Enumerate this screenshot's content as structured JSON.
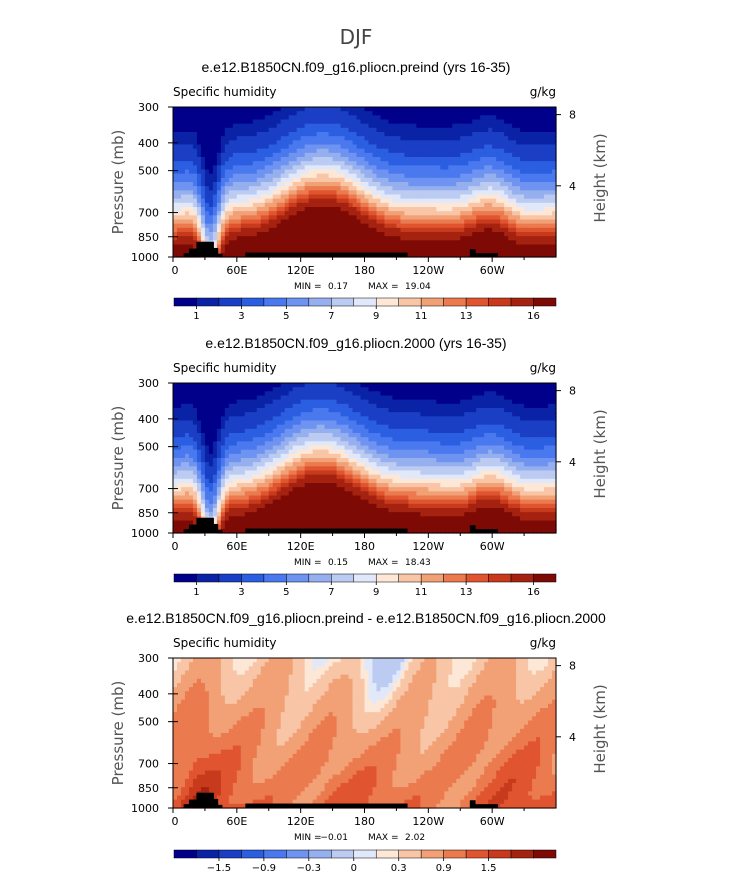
{
  "figure": {
    "title": "DJF"
  },
  "chart_data": [
    {
      "type": "heatmap",
      "title": "e.e12.B1850CN.f09_g16.pliocn.preind (yrs 16-35)",
      "field": "Specific humidity",
      "units": "g/kg",
      "ylabel": "Pressure (mb)",
      "y2label": "Height (km)",
      "xticks": [
        "0",
        "60E",
        "120E",
        "180",
        "120W",
        "60W"
      ],
      "xtick_lons": [
        0,
        60,
        120,
        180,
        240,
        300
      ],
      "xlim": [
        0,
        360
      ],
      "yticks": [
        "300",
        "400",
        "500",
        "700",
        "850",
        "1000"
      ],
      "ytick_p": [
        300,
        400,
        500,
        700,
        850,
        1000
      ],
      "ylim": [
        1000,
        300
      ],
      "y2ticks": [
        "8",
        "4"
      ],
      "y2tick_km": [
        8,
        4
      ],
      "min_label": "MIN =",
      "min_value": "0.17",
      "max_label": "MAX =",
      "max_value": "19.04",
      "colorbar_labels": [
        "1",
        "3",
        "5",
        "7",
        "9",
        "11",
        "13",
        "16"
      ],
      "colorbar_colors": [
        "#00008b",
        "#0a23a6",
        "#1a3fc4",
        "#2b5ee0",
        "#4a78ee",
        "#6e93f0",
        "#95afef",
        "#bccbf2",
        "#e1e8fa",
        "#fde7d6",
        "#f8c6a6",
        "#f2a075",
        "#eb7a4f",
        "#e05530",
        "#c83a1c",
        "#a52211",
        "#7e0a06"
      ],
      "kind": "abs"
    },
    {
      "type": "heatmap",
      "title": "e.e12.B1850CN.f09_g16.pliocn.2000 (yrs 16-35)",
      "field": "Specific humidity",
      "units": "g/kg",
      "ylabel": "Pressure (mb)",
      "y2label": "Height (km)",
      "xticks": [
        "0",
        "60E",
        "120E",
        "180",
        "120W",
        "60W"
      ],
      "xtick_lons": [
        0,
        60,
        120,
        180,
        240,
        300
      ],
      "xlim": [
        0,
        360
      ],
      "yticks": [
        "300",
        "400",
        "500",
        "700",
        "850",
        "1000"
      ],
      "ytick_p": [
        300,
        400,
        500,
        700,
        850,
        1000
      ],
      "ylim": [
        1000,
        300
      ],
      "y2ticks": [
        "8",
        "4"
      ],
      "y2tick_km": [
        8,
        4
      ],
      "min_label": "MIN =",
      "min_value": "0.15",
      "max_label": "MAX =",
      "max_value": "18.43",
      "colorbar_labels": [
        "1",
        "3",
        "5",
        "7",
        "9",
        "11",
        "13",
        "16"
      ],
      "colorbar_colors": [
        "#00008b",
        "#0a23a6",
        "#1a3fc4",
        "#2b5ee0",
        "#4a78ee",
        "#6e93f0",
        "#95afef",
        "#bccbf2",
        "#e1e8fa",
        "#fde7d6",
        "#f8c6a6",
        "#f2a075",
        "#eb7a4f",
        "#e05530",
        "#c83a1c",
        "#a52211",
        "#7e0a06"
      ],
      "kind": "abs"
    },
    {
      "type": "heatmap",
      "title": "e.e12.B1850CN.f09_g16.pliocn.preind - e.e12.B1850CN.f09_g16.pliocn.2000",
      "field": "Specific humidity",
      "units": "g/kg",
      "ylabel": "Pressure (mb)",
      "y2label": "Height (km)",
      "xticks": [
        "0",
        "60E",
        "120E",
        "180",
        "120W",
        "60W"
      ],
      "xtick_lons": [
        0,
        60,
        120,
        180,
        240,
        300
      ],
      "xlim": [
        0,
        360
      ],
      "yticks": [
        "300",
        "400",
        "500",
        "700",
        "850",
        "1000"
      ],
      "ytick_p": [
        300,
        400,
        500,
        700,
        850,
        1000
      ],
      "ylim": [
        1000,
        300
      ],
      "y2ticks": [
        "8",
        "4"
      ],
      "y2tick_km": [
        8,
        4
      ],
      "min_label": "MIN =",
      "min_value": "−0.01",
      "max_label": "MAX =",
      "max_value": "2.02",
      "colorbar_labels": [
        "−1.5",
        "−0.9",
        "−0.3",
        "0",
        "0.3",
        "0.9",
        "1.5"
      ],
      "colorbar_colors": [
        "#00008b",
        "#0a23a6",
        "#1a3fc4",
        "#2b5ee0",
        "#4a78ee",
        "#6e93f0",
        "#95afef",
        "#bccbf2",
        "#e1e8fa",
        "#fde7d6",
        "#f8c6a6",
        "#f2a075",
        "#eb7a4f",
        "#e05530",
        "#c83a1c",
        "#a52211",
        "#7e0a06"
      ],
      "kind": "diff"
    }
  ]
}
